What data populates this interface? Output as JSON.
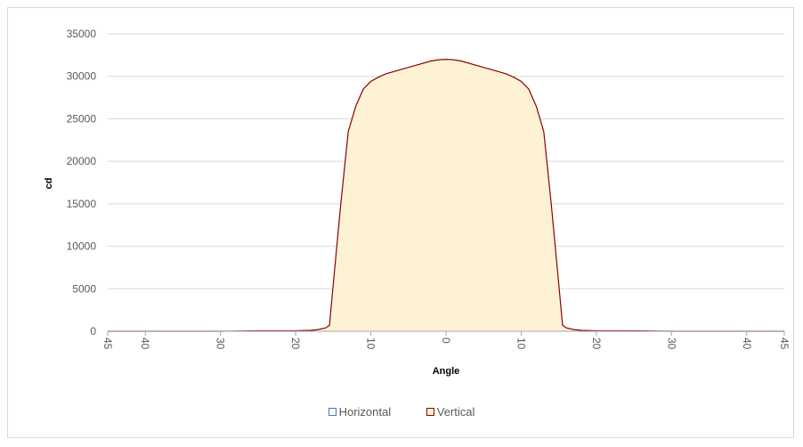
{
  "chart_data": {
    "type": "area",
    "title": "",
    "xlabel": "Angle",
    "ylabel": "cd",
    "ylim": [
      0,
      35000
    ],
    "yticks": [
      0,
      5000,
      10000,
      15000,
      20000,
      25000,
      30000,
      35000
    ],
    "xlim": [
      -45,
      45
    ],
    "xticks": [
      -45,
      -40,
      -30,
      -20,
      -10,
      0,
      10,
      20,
      30,
      40,
      45
    ],
    "xtick_labels": [
      "45",
      "40",
      "30",
      "20",
      "10",
      "0",
      "10",
      "20",
      "30",
      "40",
      "45"
    ],
    "grid": "horizontal",
    "legend_position": "bottom",
    "series": [
      {
        "name": "Horizontal",
        "stroke": "#4472c4",
        "fill": "#ffffff",
        "x": [],
        "y": []
      },
      {
        "name": "Vertical",
        "stroke": "#8b0000",
        "fill": "#fdf2d4",
        "x": [
          -45,
          -30,
          -25,
          -20,
          -18,
          -17,
          -16,
          -15.5,
          -15,
          -14,
          -13,
          -12,
          -11,
          -10,
          -9,
          -8,
          -6,
          -4,
          -2,
          -1,
          0,
          1,
          2,
          4,
          6,
          8,
          9,
          10,
          11,
          12,
          13,
          14,
          15,
          15.5,
          16,
          17,
          18,
          20,
          25,
          30,
          45
        ],
        "y": [
          0,
          0,
          50,
          50,
          100,
          200,
          400,
          700,
          5500,
          15000,
          23500,
          26500,
          28500,
          29400,
          29900,
          30300,
          30800,
          31300,
          31800,
          31950,
          32000,
          31950,
          31800,
          31300,
          30800,
          30300,
          29900,
          29400,
          28500,
          26500,
          23500,
          15000,
          5500,
          700,
          400,
          200,
          100,
          50,
          50,
          0,
          0
        ]
      }
    ]
  }
}
